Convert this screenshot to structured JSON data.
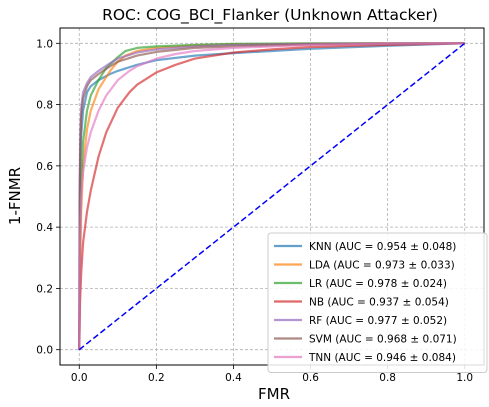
{
  "chart_data": {
    "type": "line",
    "title": "ROC: COG_BCI_Flanker (Unknown Attacker)",
    "xlabel": "FMR",
    "ylabel": "1-FNMR",
    "xlim": [
      -0.05,
      1.05
    ],
    "ylim": [
      -0.05,
      1.05
    ],
    "xticks": [
      "0.0",
      "0.2",
      "0.4",
      "0.6",
      "0.8",
      "1.0"
    ],
    "yticks": [
      "0.0",
      "0.2",
      "0.4",
      "0.6",
      "0.8",
      "1.0"
    ],
    "grid": true,
    "legend_position": "lower-right",
    "diagonal": {
      "x": [
        0,
        1
      ],
      "y": [
        0,
        1
      ],
      "color": "#0000ff",
      "style": "dashed"
    },
    "series": [
      {
        "name": "KNN (AUC = 0.954 ± 0.048)",
        "color": "#1f77b4",
        "x": [
          0,
          0.001,
          0.003,
          0.005,
          0.01,
          0.02,
          0.03,
          0.05,
          0.08,
          0.1,
          0.15,
          0.2,
          0.3,
          0.4,
          0.5,
          0.6,
          0.8,
          1.0
        ],
        "y": [
          0,
          0.45,
          0.62,
          0.7,
          0.78,
          0.84,
          0.86,
          0.88,
          0.9,
          0.91,
          0.93,
          0.945,
          0.96,
          0.968,
          0.975,
          0.982,
          0.992,
          1.0
        ]
      },
      {
        "name": "LDA (AUC = 0.973 ± 0.033)",
        "color": "#ff7f0e",
        "x": [
          0,
          0.002,
          0.005,
          0.01,
          0.02,
          0.03,
          0.05,
          0.08,
          0.1,
          0.12,
          0.15,
          0.2,
          0.3,
          0.4,
          0.6,
          0.8,
          1.0
        ],
        "y": [
          0,
          0.25,
          0.45,
          0.6,
          0.72,
          0.78,
          0.85,
          0.91,
          0.94,
          0.96,
          0.975,
          0.985,
          0.993,
          0.997,
          0.999,
          1.0,
          1.0
        ]
      },
      {
        "name": "LR (AUC = 0.978 ± 0.024)",
        "color": "#2ca02c",
        "x": [
          0,
          0.002,
          0.005,
          0.01,
          0.02,
          0.03,
          0.05,
          0.07,
          0.1,
          0.12,
          0.15,
          0.2,
          0.3,
          0.4,
          0.6,
          0.8,
          1.0
        ],
        "y": [
          0,
          0.35,
          0.55,
          0.68,
          0.78,
          0.83,
          0.88,
          0.92,
          0.955,
          0.975,
          0.985,
          0.99,
          0.995,
          0.998,
          1.0,
          1.0,
          1.0
        ]
      },
      {
        "name": "NB (AUC = 0.937 ± 0.054)",
        "color": "#d62728",
        "x": [
          0,
          0.002,
          0.005,
          0.01,
          0.02,
          0.03,
          0.05,
          0.07,
          0.1,
          0.13,
          0.15,
          0.2,
          0.25,
          0.3,
          0.4,
          0.5,
          0.6,
          0.8,
          1.0
        ],
        "y": [
          0,
          0.15,
          0.25,
          0.35,
          0.45,
          0.52,
          0.63,
          0.71,
          0.79,
          0.84,
          0.865,
          0.905,
          0.93,
          0.95,
          0.97,
          0.98,
          0.988,
          0.995,
          1.0
        ]
      },
      {
        "name": "RF (AUC = 0.977 ± 0.052)",
        "color": "#9467bd",
        "x": [
          0,
          0.001,
          0.003,
          0.005,
          0.01,
          0.02,
          0.03,
          0.05,
          0.08,
          0.1,
          0.15,
          0.2,
          0.3,
          0.4,
          0.6,
          0.8,
          1.0
        ],
        "y": [
          0,
          0.55,
          0.72,
          0.79,
          0.84,
          0.87,
          0.89,
          0.91,
          0.935,
          0.95,
          0.97,
          0.98,
          0.99,
          0.995,
          0.998,
          1.0,
          1.0
        ]
      },
      {
        "name": "SVM (AUC = 0.968 ± 0.071)",
        "color": "#8c564b",
        "x": [
          0,
          0.001,
          0.003,
          0.005,
          0.01,
          0.02,
          0.03,
          0.05,
          0.08,
          0.1,
          0.15,
          0.2,
          0.3,
          0.4,
          0.6,
          0.8,
          1.0
        ],
        "y": [
          0,
          0.5,
          0.68,
          0.76,
          0.82,
          0.86,
          0.88,
          0.9,
          0.925,
          0.94,
          0.96,
          0.972,
          0.985,
          0.99,
          0.996,
          0.999,
          1.0
        ]
      },
      {
        "name": "TNN (AUC = 0.946 ± 0.084)",
        "color": "#e377c2",
        "x": [
          0,
          0.002,
          0.005,
          0.01,
          0.02,
          0.03,
          0.05,
          0.07,
          0.1,
          0.13,
          0.15,
          0.2,
          0.25,
          0.3,
          0.4,
          0.5,
          0.6,
          0.8,
          1.0
        ],
        "y": [
          0,
          0.35,
          0.5,
          0.58,
          0.66,
          0.71,
          0.78,
          0.83,
          0.88,
          0.91,
          0.925,
          0.95,
          0.965,
          0.975,
          0.985,
          0.99,
          0.995,
          0.999,
          1.0
        ]
      }
    ]
  }
}
